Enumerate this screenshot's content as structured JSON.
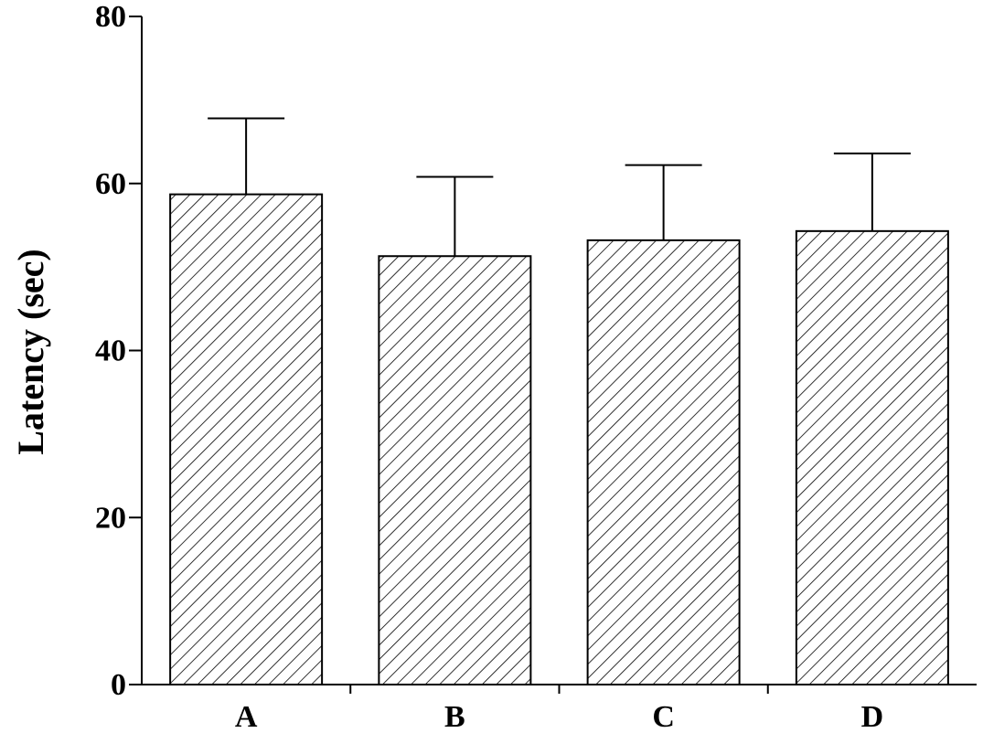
{
  "chart_data": {
    "type": "bar",
    "title": "",
    "xlabel": "",
    "ylabel": "Latency (sec)",
    "categories": [
      "A",
      "B",
      "C",
      "D"
    ],
    "values": [
      58.7,
      51.3,
      53.2,
      54.3
    ],
    "error_upper": [
      67.8,
      60.8,
      62.2,
      63.6
    ],
    "ylim": [
      0,
      80
    ],
    "yticks": [
      "0",
      "20",
      "40",
      "60",
      "80"
    ],
    "grid": false,
    "legend": "none",
    "bar_pattern": "diagonal-hatch",
    "colors": {
      "bar_fill": "#ffffff",
      "bar_stroke": "#000000",
      "hatch": "#000000"
    }
  }
}
